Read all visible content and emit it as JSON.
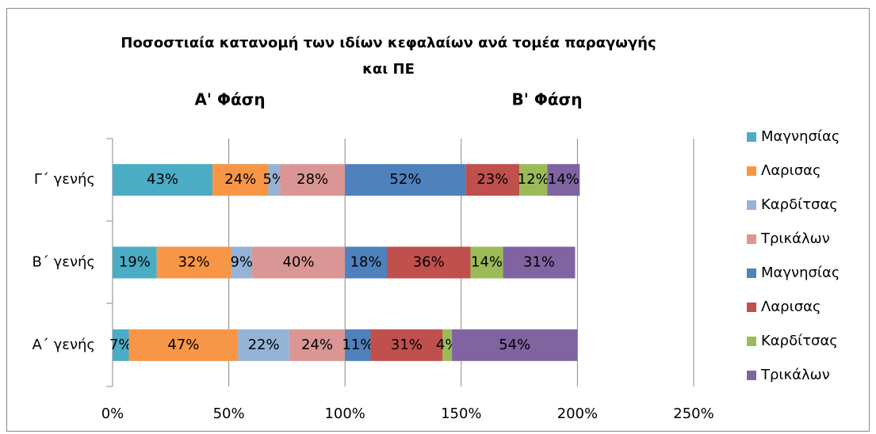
{
  "chart_data": {
    "type": "bar",
    "orientation": "horizontal",
    "stacked": true,
    "title": [
      "Ποσοστιαία κατανομή των ιδίων κεφαλαίων ανά τομέα παραγωγής",
      "και ΠΕ"
    ],
    "annotations": [
      "Α' Φάση",
      "Β' Φάση"
    ],
    "categories": [
      "Α΄ γενής",
      "Β΄ γενής",
      "Γ΄ γενής"
    ],
    "series": [
      {
        "name": "Μαγνησίας",
        "color": "#4bacc6",
        "values": [
          7,
          19,
          43
        ],
        "value_labels": [
          "7%",
          "19%",
          "43%"
        ]
      },
      {
        "name": "Λαρισας",
        "color": "#f79646",
        "values": [
          47,
          32,
          24
        ],
        "value_labels": [
          "47%",
          "32%",
          "24%"
        ]
      },
      {
        "name": "Καρδίτσας",
        "color": "#95b3d7",
        "values": [
          22,
          9,
          5
        ],
        "value_labels": [
          "22%",
          "9%",
          "5%"
        ]
      },
      {
        "name": "Τρικάλων",
        "color": "#d99694",
        "values": [
          24,
          40,
          28
        ],
        "value_labels": [
          "24%",
          "40%",
          "28%"
        ]
      },
      {
        "name": "Μαγνησίας",
        "color": "#4f81bd",
        "values": [
          11,
          18,
          52
        ],
        "value_labels": [
          "11%",
          "18%",
          "52%"
        ]
      },
      {
        "name": "Λαρισας",
        "color": "#c0504d",
        "values": [
          31,
          36,
          23
        ],
        "value_labels": [
          "31%",
          "36%",
          "23%"
        ]
      },
      {
        "name": "Καρδίτσας",
        "color": "#9bbb59",
        "values": [
          4,
          14,
          12
        ],
        "value_labels": [
          "4%",
          "14%",
          "12%"
        ]
      },
      {
        "name": "Τρικάλων",
        "color": "#8064a2",
        "values": [
          54,
          31,
          14
        ],
        "value_labels": [
          "54%",
          "31%",
          "14%"
        ]
      }
    ],
    "xlim": [
      0,
      250
    ],
    "xticks": [
      {
        "value": 0,
        "label": "0%"
      },
      {
        "value": 50,
        "label": "50%"
      },
      {
        "value": 100,
        "label": "100%"
      },
      {
        "value": 150,
        "label": "150%"
      },
      {
        "value": 200,
        "label": "200%"
      },
      {
        "value": 250,
        "label": "250%"
      }
    ],
    "grid": true,
    "legend": "right"
  }
}
